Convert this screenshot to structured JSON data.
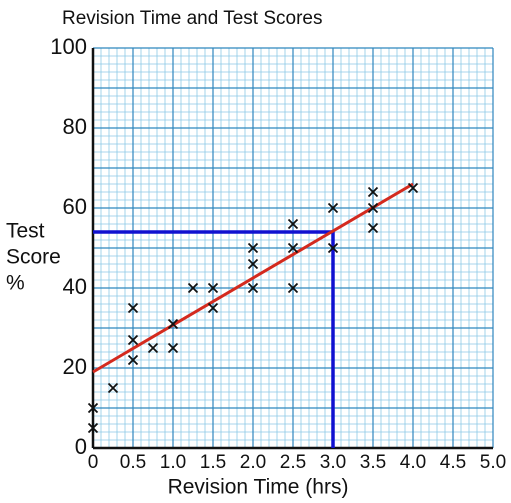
{
  "chart_data": {
    "type": "scatter",
    "title": "Revision Time and Test Scores",
    "x_label": "Revision Time (hrs)",
    "y_label": [
      "Test",
      "Score",
      "%"
    ],
    "x": [
      0,
      0,
      0.25,
      0.5,
      0.5,
      0.5,
      0.75,
      1.0,
      1.0,
      1.25,
      1.5,
      1.5,
      2.0,
      2.0,
      2.0,
      2.5,
      2.5,
      2.5,
      3.0,
      3.0,
      3.5,
      3.5,
      3.5,
      4.0
    ],
    "values": [
      10,
      5,
      15,
      35,
      27,
      22,
      25,
      31,
      25,
      40,
      40,
      35,
      50,
      46,
      40,
      56,
      50,
      40,
      60,
      50,
      64,
      60,
      55,
      65
    ],
    "color": "#111111",
    "fit_line": {
      "x": [
        0,
        4
      ],
      "y": [
        19,
        66
      ],
      "color": "#d42a1e"
    },
    "reading_line": {
      "x": [
        0,
        3,
        3
      ],
      "y": [
        54,
        54,
        0
      ],
      "color": "#1010d0"
    },
    "xlim": [
      0,
      5
    ],
    "ylim": [
      0,
      100
    ],
    "xticks": [
      0,
      0.5,
      {
        "value": 1,
        "label": "1.0"
      },
      1.5,
      {
        "value": 2,
        "label": "2.0"
      },
      2.5,
      {
        "value": 3,
        "label": "3.0"
      },
      3.5,
      {
        "value": 4,
        "label": "4.0"
      },
      4.5,
      {
        "value": 5,
        "label": "5.0"
      }
    ],
    "yticks": [
      0,
      20,
      40,
      60,
      80,
      100
    ],
    "grid": true,
    "minor_grid_divisions": 5
  }
}
